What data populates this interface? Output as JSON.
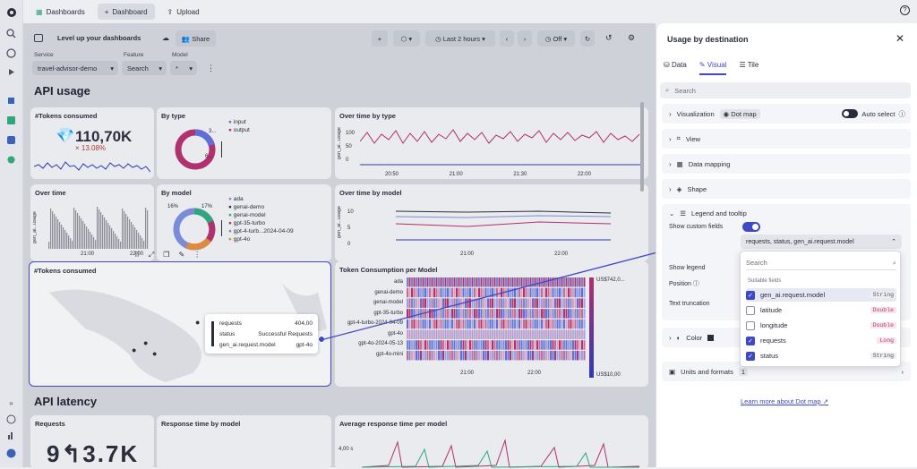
{
  "nav": {
    "tab_dashboards": "Dashboards",
    "tab_dashboard": "Dashboard",
    "tab_upload": "Upload"
  },
  "toolbar": {
    "title": "Level up your dashboards",
    "share": "Share",
    "timeframe": "Last 2 hours",
    "refresh": "Off"
  },
  "filters": [
    {
      "label": "Service",
      "value": "travel-advisor-demo"
    },
    {
      "label": "Feature",
      "value": "Search"
    },
    {
      "label": "Model",
      "value": "*"
    }
  ],
  "sections": {
    "api_usage": "API usage",
    "api_latency": "API latency"
  },
  "tiles": {
    "tokens_consumed": {
      "title": "#Tokens consumed",
      "value": "110,70K",
      "delta": "× 13.08%"
    },
    "by_type": {
      "title": "By type",
      "legend": [
        "input",
        "output"
      ],
      "tick_top": "3...",
      "tick_bottom": "6..."
    },
    "over_time_by_type": {
      "title": "Over time by type",
      "yaxis": "gen_ai...usage",
      "ticks": [
        "100",
        "50",
        "0"
      ],
      "xticks": [
        "20:50",
        "21:00",
        "21:30",
        "22:00"
      ]
    },
    "over_time": {
      "title": "Over time",
      "yaxis": "gen_ai...usage",
      "xticks": [
        "21:00",
        "22:00"
      ]
    },
    "by_model": {
      "title": "By model",
      "pct_left": "16%",
      "pct_right": "17%",
      "legend": [
        "ada",
        "genai-demo",
        "genai-model",
        "gpt-35-turbo",
        "gpt-4-turb...2024-04-09",
        "gpt-4o"
      ]
    },
    "over_time_by_model": {
      "title": "Over time by model",
      "yaxis": "gen_ai...usage",
      "ticks": [
        "10",
        "5",
        "0"
      ],
      "xticks": [
        "21:00",
        "22:00"
      ]
    },
    "map": {
      "title": "#Tokens consumed"
    },
    "token_per_model": {
      "title": "Token Consumption per Model",
      "rows": [
        "ada",
        "genai-demo",
        "genai-model",
        "gpt-35-turbo",
        "gpt-4-turbo-2024-04-09",
        "gpt-4o",
        "gpt-4o-2024-05-13",
        "gpt-4o-mini"
      ],
      "xticks": [
        "21:00",
        "22:00"
      ],
      "scale_top": "US$742,0...",
      "scale_bottom": "US$10,00"
    },
    "requests": {
      "title": "Requests",
      "value": "9↰3.7K"
    },
    "response_time": {
      "title": "Response time by model"
    },
    "avg_response": {
      "title": "Average response time per model",
      "tick": "4,00 s"
    }
  },
  "tooltip": {
    "rows": [
      [
        "requests",
        "404,00"
      ],
      [
        "status",
        "Successful Requests"
      ],
      [
        "gen_ai.request.model",
        "gpt-4o"
      ]
    ]
  },
  "panel": {
    "title": "Usage by destination",
    "tabs": [
      "Data",
      "Visual",
      "Tile"
    ],
    "search_placeholder": "Search",
    "visualization_label": "Visualization",
    "visualization_value": "Dot map",
    "auto_select": "Auto select",
    "view": "View",
    "data_mapping": "Data mapping",
    "shape": "Shape",
    "legend": "Legend and tooltip",
    "show_custom_fields": "Show custom fields",
    "fields_value": "requests, status, gen_ai.request.model",
    "show_legend": "Show legend",
    "position": "Position",
    "text_truncation": "Text truncation",
    "color": "Color",
    "units": "Units and formats",
    "units_count": "1",
    "learn_more": "Learn more about Dot map"
  },
  "dropdown": {
    "search_placeholder": "Search",
    "section": "Suitable fields",
    "options": [
      {
        "label": "gen_ai.request.model",
        "type": "String",
        "checked": true
      },
      {
        "label": "latitude",
        "type": "Double",
        "checked": false
      },
      {
        "label": "longitude",
        "type": "Double",
        "checked": false
      },
      {
        "label": "requests",
        "type": "Long",
        "checked": true
      },
      {
        "label": "status",
        "type": "String",
        "checked": true
      }
    ]
  },
  "colors": {
    "accent": "#3f48c9",
    "magenta": "#b1306e",
    "blue": "#2c3ab2"
  }
}
